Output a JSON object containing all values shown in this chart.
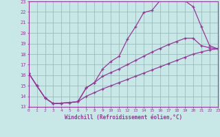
{
  "xlabel": "Windchill (Refroidissement éolien,°C)",
  "bg_color": "#c8e8e8",
  "line_color": "#993399",
  "grid_color": "#99bbbb",
  "xmin": 0,
  "xmax": 23,
  "ymin": 13,
  "ymax": 23,
  "line1_x": [
    0,
    1,
    2,
    3,
    4,
    5,
    6,
    7,
    8,
    9,
    10,
    11,
    12,
    13,
    14,
    15,
    16,
    17,
    18,
    19,
    20,
    21,
    22,
    23
  ],
  "line1_y": [
    16.2,
    15.0,
    13.85,
    13.3,
    13.35,
    13.4,
    13.5,
    14.8,
    15.3,
    16.6,
    17.3,
    17.8,
    19.4,
    20.6,
    21.95,
    22.15,
    23.1,
    23.1,
    23.2,
    23.05,
    22.5,
    20.6,
    18.8,
    18.5
  ],
  "line2_x": [
    0,
    1,
    2,
    3,
    4,
    5,
    6,
    7,
    8,
    9,
    10,
    11,
    12,
    13,
    14,
    15,
    16,
    17,
    18,
    19,
    20,
    21,
    22,
    23
  ],
  "line2_y": [
    16.2,
    15.0,
    13.85,
    13.3,
    13.35,
    13.4,
    13.5,
    14.8,
    15.3,
    15.9,
    16.25,
    16.6,
    17.0,
    17.4,
    17.8,
    18.2,
    18.55,
    18.9,
    19.2,
    19.5,
    19.5,
    18.8,
    18.6,
    18.5
  ],
  "line3_x": [
    0,
    1,
    2,
    3,
    4,
    5,
    6,
    7,
    8,
    9,
    10,
    11,
    12,
    13,
    14,
    15,
    16,
    17,
    18,
    19,
    20,
    21,
    22,
    23
  ],
  "line3_y": [
    16.2,
    15.0,
    13.85,
    13.3,
    13.35,
    13.4,
    13.5,
    14.0,
    14.35,
    14.7,
    15.0,
    15.3,
    15.6,
    15.9,
    16.2,
    16.5,
    16.8,
    17.1,
    17.4,
    17.7,
    18.0,
    18.2,
    18.4,
    18.5
  ]
}
